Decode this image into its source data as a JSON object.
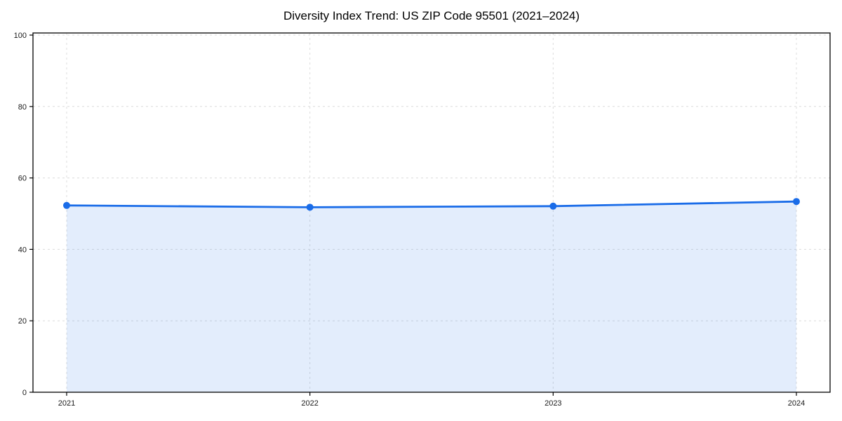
{
  "page": {
    "background_color": "#ffffff"
  },
  "chart_data": {
    "type": "area",
    "title": "Diversity Index Trend: US ZIP Code 95501 (2021–2024)",
    "categories": [
      "2021",
      "2022",
      "2023",
      "2024"
    ],
    "series": [
      {
        "name": "Diversity Index",
        "values": [
          52.3,
          51.8,
          52.1,
          53.4
        ]
      }
    ],
    "xlabel": "",
    "ylabel": "",
    "ylim": [
      0,
      100
    ],
    "yticks": [
      0,
      20,
      40,
      60,
      80,
      100
    ],
    "grid": true,
    "grid_style": "dashed",
    "grid_color": "#dcdcdc",
    "legend": "none",
    "line_color": "#1a6ce8",
    "marker": "circle",
    "marker_color": "#1a6ce8",
    "fill_color": "#1a6ce8",
    "fill_opacity": 0.12,
    "axis_color": "#000000",
    "tick_label_color": "#1a1a1a"
  }
}
